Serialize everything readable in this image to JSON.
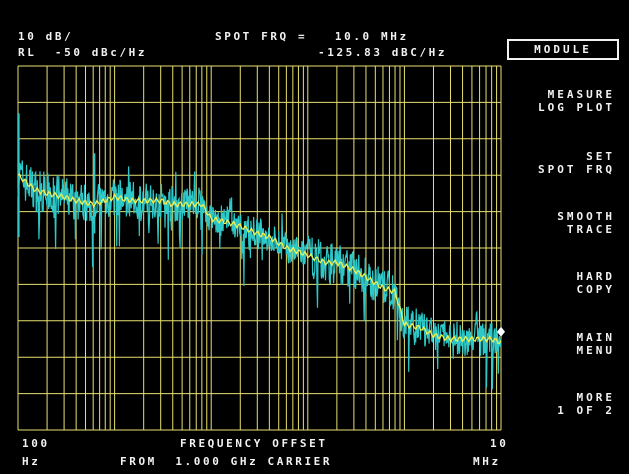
{
  "header": {
    "scale": "10 dB/",
    "ref_level": "RL  -50 dBc/Hz",
    "spot_label": "SPOT FRQ =   10.0 MHz",
    "spot_value": "-125.83 dBC/Hz"
  },
  "softkeys": [
    {
      "lines": [
        "MODULE"
      ],
      "boxed": true
    },
    {
      "lines": [
        "MEASURE",
        "LOG PLOT"
      ]
    },
    {
      "lines": [
        "SET",
        "SPOT FRQ"
      ]
    },
    {
      "lines": [
        "SMOOTH",
        "TRACE"
      ]
    },
    {
      "lines": [
        "HARD",
        "COPY"
      ]
    },
    {
      "lines": [
        "MAIN",
        "MENU"
      ]
    },
    {
      "lines": [
        "MORE",
        "1 OF 2"
      ]
    }
  ],
  "footer": {
    "start_value": "100",
    "start_unit": "Hz",
    "axis_title": "FREQUENCY OFFSET",
    "carrier": "FROM  1.000 GHz CARRIER",
    "stop_value": "10",
    "stop_unit": "MHz"
  },
  "colors": {
    "background": "#000000",
    "grid": "#e8e070",
    "raw_trace": "#2ec8c8",
    "smooth_trace": "#f0f050",
    "text": "#f2f2f2",
    "marker": "#ffffff"
  },
  "chart_data": {
    "type": "line",
    "x_scale": "log",
    "xlim": [
      100,
      10000000
    ],
    "ylim": [
      -150,
      -50
    ],
    "y_divisions": 10,
    "x_decades": 5,
    "series": [
      {
        "kind": "smoothed",
        "x": [
          100,
          150,
          200,
          300,
          400,
          600,
          800,
          1000,
          1500,
          2000,
          3000,
          4000,
          6000,
          8000,
          10000,
          15000,
          20000,
          30000,
          40000,
          60000,
          80000,
          100000,
          150000,
          200000,
          300000,
          400000,
          600000,
          800000,
          1000000,
          1500000,
          2000000,
          3000000,
          4000000,
          6000000,
          8000000,
          10000000
        ],
        "y": [
          -80,
          -84,
          -85,
          -86,
          -87,
          -88,
          -87,
          -86,
          -87,
          -87,
          -87,
          -88,
          -88,
          -88,
          -92,
          -93,
          -94,
          -96,
          -97,
          -100,
          -101,
          -102,
          -104,
          -104,
          -106,
          -108,
          -111,
          -112,
          -121,
          -122,
          -124,
          -125,
          -125,
          -125,
          -125,
          -126
        ]
      }
    ],
    "marker": {
      "x": 10000000,
      "y": -125.83
    }
  }
}
